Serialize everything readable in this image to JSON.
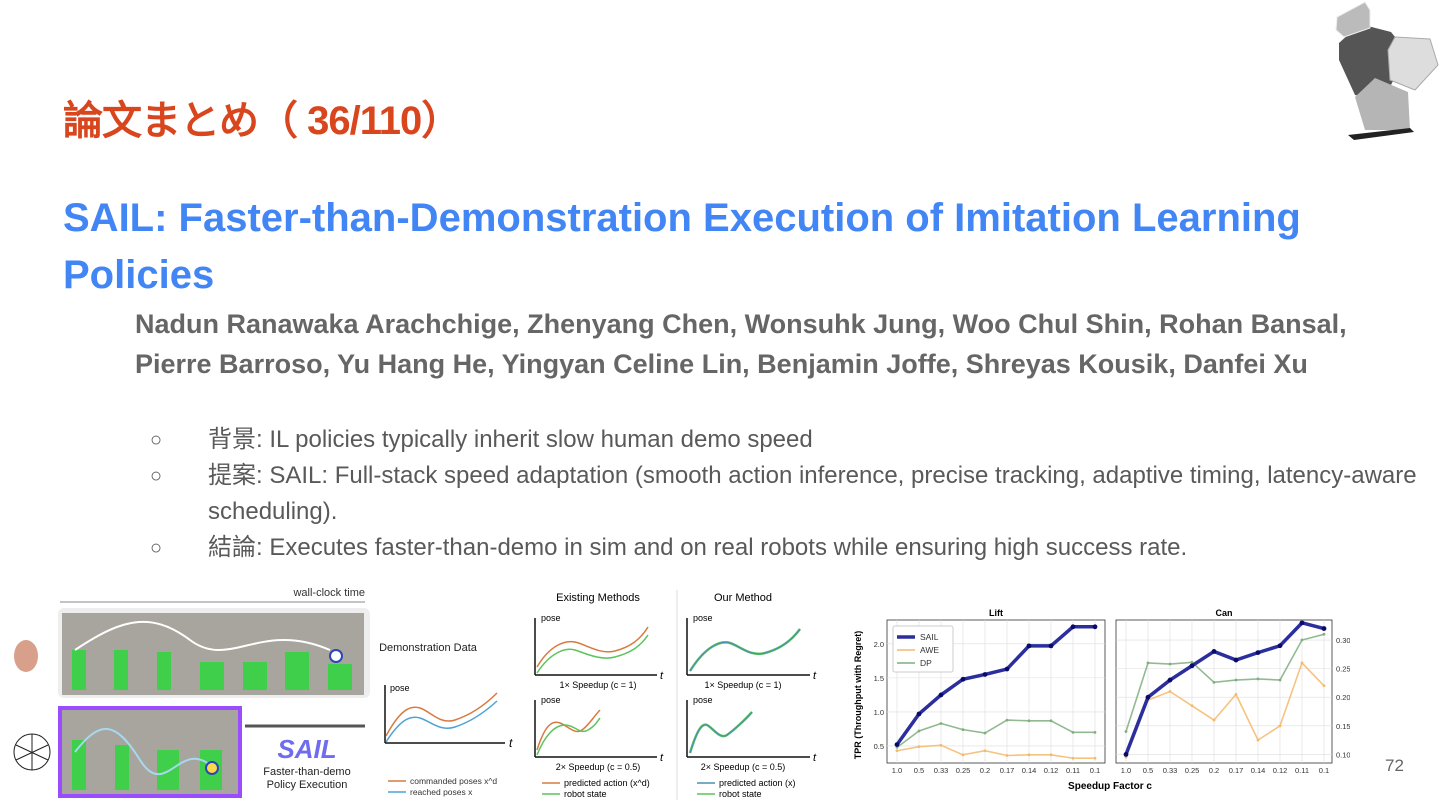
{
  "slide_title": "論文まとめ（ 36/110）",
  "paper_title": "SAIL: Faster-than-Demonstration Execution of Imitation Learning Policies",
  "authors": "Nadun Ranawaka Arachchige, Zhenyang Chen, Wonsuhk Jung, Woo Chul Shin, Rohan Bansal, Pierre Barroso, Yu Hang He, Yingyan Celine Lin, Benjamin Joffe, Shreyas Kousik, Danfei Xu",
  "bullets": [
    {
      "marker": "○",
      "label": "背景",
      "text": ": IL policies typically inherit slow human demo speed"
    },
    {
      "marker": "○",
      "label": "提案",
      "text": ": SAIL: Full-stack speed adaptation (smooth action inference, precise tracking, adaptive timing, latency-aware scheduling)."
    },
    {
      "marker": "○",
      "label": "結論",
      "text": ": Executes faster-than-demo in sim and on real robots while ensuring high success rate."
    }
  ],
  "page_number": "72",
  "figure_left": {
    "time_label": "wall-clock time",
    "demo_title": "Demonstration Data",
    "sail_logo": "SAIL",
    "sail_caption_1": "Faster-than-demo",
    "sail_caption_2": "Policy Execution",
    "pose": "pose",
    "t": "t",
    "legend_commanded": "commanded poses x^d",
    "legend_reached": "reached poses x"
  },
  "figure_mid": {
    "existing": "Existing Methods",
    "ours": "Our Method",
    "pose": "pose",
    "t": "t",
    "speed1": "1× Speedup (c = 1)",
    "speed2": "2× Speedup (c = 0.5)",
    "existing_legend_1": "predicted action (x^d)",
    "ours_legend_1": "predicted action (x)",
    "legend_2": "robot state"
  },
  "colors": {
    "title_red": "#d9461e",
    "title_blue": "#4285f4",
    "sail": "#2b2f9e",
    "awe": "#f5b96b",
    "dp": "#7fae7f"
  },
  "chart_data": [
    {
      "type": "line",
      "title": "Lift",
      "xlabel": "Speedup Factor c",
      "ylabel": "TPR (Throughput with Regret)",
      "categories": [
        "1.0",
        "0.5",
        "0.33",
        "0.25",
        "0.2",
        "0.17",
        "0.14",
        "0.12",
        "0.11",
        "0.1"
      ],
      "yticks": [
        "0.5",
        "1.0",
        "1.5",
        "2.0"
      ],
      "ylim": [
        0.25,
        2.35
      ],
      "grid": true,
      "legend": "top-left",
      "series": [
        {
          "name": "SAIL",
          "values": [
            0.52,
            0.97,
            1.25,
            1.48,
            1.55,
            1.63,
            1.97,
            1.97,
            2.25,
            2.25
          ]
        },
        {
          "name": "AWE",
          "values": [
            0.43,
            0.49,
            0.51,
            0.37,
            0.43,
            0.36,
            0.37,
            0.37,
            0.32,
            0.32
          ]
        },
        {
          "name": "DP",
          "values": [
            0.48,
            0.72,
            0.83,
            0.74,
            0.69,
            0.88,
            0.87,
            0.87,
            0.7,
            0.7
          ]
        }
      ]
    },
    {
      "type": "line",
      "title": "Can",
      "xlabel": "Speedup Factor c",
      "ylabel": "",
      "categories": [
        "1.0",
        "0.5",
        "0.33",
        "0.25",
        "0.2",
        "0.17",
        "0.14",
        "0.12",
        "0.11",
        "0.1"
      ],
      "yticks": [
        "0.10",
        "0.15",
        "0.20",
        "0.25",
        "0.30"
      ],
      "ylim": [
        0.085,
        0.335
      ],
      "grid": true,
      "axis_side": "right",
      "series": [
        {
          "name": "SAIL",
          "values": [
            0.1,
            0.2,
            0.23,
            0.255,
            0.28,
            0.265,
            0.278,
            0.29,
            0.33,
            0.32
          ]
        },
        {
          "name": "AWE",
          "values": [
            0.095,
            0.195,
            0.21,
            0.185,
            0.16,
            0.205,
            0.125,
            0.15,
            0.26,
            0.22
          ]
        },
        {
          "name": "DP",
          "values": [
            0.14,
            0.26,
            0.258,
            0.261,
            0.226,
            0.23,
            0.232,
            0.23,
            0.3,
            0.31
          ]
        }
      ]
    }
  ]
}
